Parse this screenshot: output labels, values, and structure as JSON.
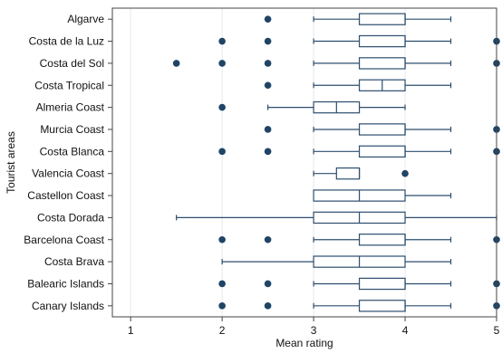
{
  "chart_data": {
    "type": "box",
    "orientation": "horizontal",
    "title": "",
    "xlabel": "Mean rating",
    "ylabel": "Tourist areas",
    "xlim": [
      0.8,
      5.0
    ],
    "xticks": [
      1,
      2,
      3,
      4,
      5
    ],
    "grid": "vertical",
    "colors": {
      "box": "#2d4e6e",
      "outlier": "#1f4466",
      "grid": "#e6e9ee",
      "frame": "#444444"
    },
    "categories": [
      "Algarve",
      "Costa de la Luz",
      "Costa del Sol",
      "Costa Tropical",
      "Almeria Coast",
      "Murcia Coast",
      "Costa Blanca",
      "Valencia Coast",
      "Castellon Coast",
      "Costa Dorada",
      "Barcelona Coast",
      "Costa Brava",
      "Balearic Islands",
      "Canary Islands"
    ],
    "boxes": [
      {
        "min": 3,
        "q1": 3.5,
        "median": 4,
        "q3": 4,
        "max": 4.5,
        "outliers": [
          2.5
        ]
      },
      {
        "min": 3,
        "q1": 3.5,
        "median": 4,
        "q3": 4,
        "max": 4.5,
        "outliers": [
          2,
          2.5,
          5
        ]
      },
      {
        "min": 3,
        "q1": 3.5,
        "median": 4,
        "q3": 4,
        "max": 4.5,
        "outliers": [
          1.5,
          2,
          2.5,
          5
        ]
      },
      {
        "min": 3,
        "q1": 3.5,
        "median": 3.75,
        "q3": 4,
        "max": 4.5,
        "outliers": [
          2.5
        ]
      },
      {
        "min": 2.5,
        "q1": 3,
        "median": 3.25,
        "q3": 3.5,
        "max": 4,
        "outliers": [
          2
        ]
      },
      {
        "min": 3,
        "q1": 3.5,
        "median": 4,
        "q3": 4,
        "max": 4.5,
        "outliers": [
          2.5,
          5
        ]
      },
      {
        "min": 3,
        "q1": 3.5,
        "median": 4,
        "q3": 4,
        "max": 4.5,
        "outliers": [
          2,
          2.5,
          5
        ]
      },
      {
        "min": 3,
        "q1": 3.25,
        "median": 3.5,
        "q3": 3.5,
        "max": 3.5,
        "outliers": [
          4
        ]
      },
      {
        "min": 3,
        "q1": 3,
        "median": 3.5,
        "q3": 4,
        "max": 4.5,
        "outliers": []
      },
      {
        "min": 1.5,
        "q1": 3,
        "median": 3.5,
        "q3": 4,
        "max": 5,
        "outliers": []
      },
      {
        "min": 3,
        "q1": 3.5,
        "median": 4,
        "q3": 4,
        "max": 4.5,
        "outliers": [
          2,
          2.5,
          5
        ]
      },
      {
        "min": 2,
        "q1": 3,
        "median": 3.5,
        "q3": 4,
        "max": 4.5,
        "outliers": []
      },
      {
        "min": 3,
        "q1": 3.5,
        "median": 4,
        "q3": 4,
        "max": 4.5,
        "outliers": [
          2,
          2.5,
          5
        ]
      },
      {
        "min": 3,
        "q1": 3.5,
        "median": 4,
        "q3": 4,
        "max": 4.5,
        "outliers": [
          2,
          2.5,
          5
        ]
      }
    ]
  }
}
